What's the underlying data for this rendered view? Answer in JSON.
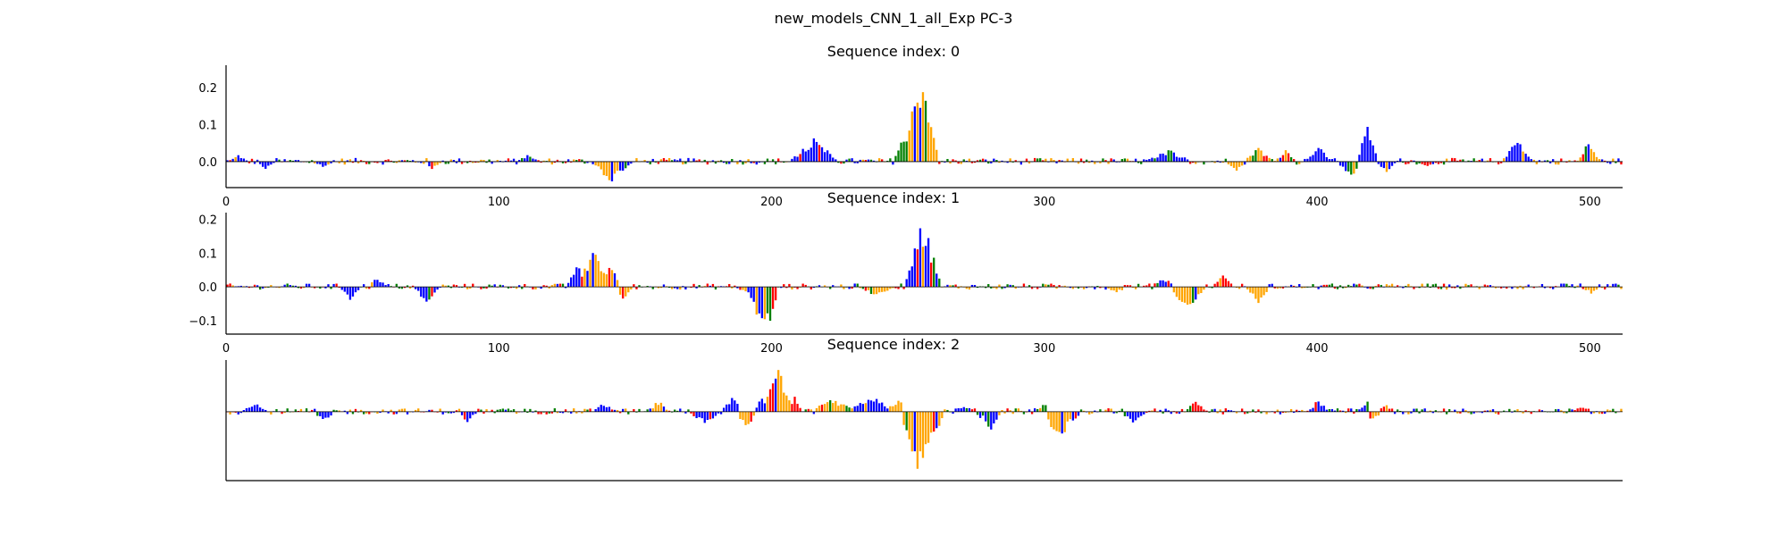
{
  "figure": {
    "suptitle": "new_models_CNN_1_all_Exp PC-3"
  },
  "colors": {
    "A": "#008000",
    "C": "#0000ff",
    "G": "#ffa500",
    "T": "#ff0000",
    "axis": "#000000"
  },
  "chart_data": [
    {
      "type": "area",
      "title": "Sequence index: 0",
      "sequence_length": 512,
      "xlim": [
        0,
        512
      ],
      "ylim": [
        -0.07,
        0.26
      ],
      "xticks": [
        0,
        100,
        200,
        300,
        400,
        500
      ],
      "yticks": [
        0.0,
        0.1,
        0.2
      ],
      "ytick_labels": [
        "0.0",
        "0.1",
        "0.2"
      ],
      "bases": [
        "A",
        "C",
        "G",
        "T"
      ],
      "features": [
        {
          "x": 4,
          "value": 0.02,
          "width": 3,
          "base": "C"
        },
        {
          "x": 14,
          "value": -0.02,
          "width": 3,
          "base": "C"
        },
        {
          "x": 35,
          "value": -0.015,
          "width": 4,
          "base": "C"
        },
        {
          "x": 75,
          "value": -0.02,
          "width": 3,
          "base": "G"
        },
        {
          "x": 110,
          "value": 0.02,
          "width": 3,
          "base": "C"
        },
        {
          "x": 140,
          "value": -0.065,
          "width": 5,
          "base": "G"
        },
        {
          "x": 145,
          "value": -0.035,
          "width": 3,
          "base": "C"
        },
        {
          "x": 215,
          "value": 0.07,
          "width": 8,
          "base": "C"
        },
        {
          "x": 248,
          "value": 0.09,
          "width": 3,
          "base": "A"
        },
        {
          "x": 254,
          "value": 0.25,
          "width": 6,
          "base": "G"
        },
        {
          "x": 258,
          "value": 0.09,
          "width": 2,
          "base": "T"
        },
        {
          "x": 259,
          "value": -0.03,
          "width": 2,
          "base": "T"
        },
        {
          "x": 345,
          "value": 0.035,
          "width": 8,
          "base": "C"
        },
        {
          "x": 370,
          "value": -0.03,
          "width": 3,
          "base": "G"
        },
        {
          "x": 378,
          "value": 0.04,
          "width": 5,
          "base": "G"
        },
        {
          "x": 388,
          "value": 0.035,
          "width": 3,
          "base": "T"
        },
        {
          "x": 400,
          "value": 0.05,
          "width": 4,
          "base": "C"
        },
        {
          "x": 412,
          "value": -0.055,
          "width": 4,
          "base": "C"
        },
        {
          "x": 418,
          "value": 0.1,
          "width": 3,
          "base": "C"
        },
        {
          "x": 425,
          "value": -0.03,
          "width": 3,
          "base": "C"
        },
        {
          "x": 440,
          "value": -0.015,
          "width": 3,
          "base": "T"
        },
        {
          "x": 473,
          "value": 0.06,
          "width": 5,
          "base": "C"
        },
        {
          "x": 499,
          "value": 0.06,
          "width": 3,
          "base": "G"
        }
      ]
    },
    {
      "type": "area",
      "title": "Sequence index: 1",
      "sequence_length": 512,
      "xlim": [
        0,
        512
      ],
      "ylim": [
        -0.14,
        0.22
      ],
      "xticks": [
        0,
        100,
        200,
        300,
        400,
        500
      ],
      "yticks": [
        -0.1,
        0.0,
        0.1,
        0.2
      ],
      "ytick_labels": [
        "−0.1",
        "0.0",
        "0.1",
        "0.2"
      ],
      "bases": [
        "A",
        "C",
        "G",
        "T"
      ],
      "features": [
        {
          "x": 45,
          "value": -0.04,
          "width": 3,
          "base": "C"
        },
        {
          "x": 55,
          "value": 0.03,
          "width": 3,
          "base": "C"
        },
        {
          "x": 73,
          "value": -0.05,
          "width": 4,
          "base": "C"
        },
        {
          "x": 134,
          "value": 0.14,
          "width": 4,
          "base": "G"
        },
        {
          "x": 128,
          "value": 0.08,
          "width": 3,
          "base": "C"
        },
        {
          "x": 140,
          "value": 0.07,
          "width": 4,
          "base": "G"
        },
        {
          "x": 145,
          "value": -0.04,
          "width": 3,
          "base": "G"
        },
        {
          "x": 190,
          "value": -0.02,
          "width": 3,
          "base": "G"
        },
        {
          "x": 196,
          "value": -0.13,
          "width": 5,
          "base": "C"
        },
        {
          "x": 197,
          "value": -0.11,
          "width": 2,
          "base": "A"
        },
        {
          "x": 199,
          "value": -0.13,
          "width": 2,
          "base": "T"
        },
        {
          "x": 238,
          "value": -0.03,
          "width": 6,
          "base": "G"
        },
        {
          "x": 255,
          "value": 0.21,
          "width": 6,
          "base": "C"
        },
        {
          "x": 254,
          "value": 0.17,
          "width": 2,
          "base": "T"
        },
        {
          "x": 252,
          "value": 0.11,
          "width": 2,
          "base": "T"
        },
        {
          "x": 326,
          "value": -0.02,
          "width": 3,
          "base": "G"
        },
        {
          "x": 343,
          "value": 0.03,
          "width": 4,
          "base": "C"
        },
        {
          "x": 352,
          "value": -0.07,
          "width": 6,
          "base": "G"
        },
        {
          "x": 365,
          "value": 0.04,
          "width": 3,
          "base": "T"
        },
        {
          "x": 378,
          "value": -0.05,
          "width": 4,
          "base": "G"
        },
        {
          "x": 500,
          "value": -0.02,
          "width": 4,
          "base": "G"
        }
      ]
    },
    {
      "type": "area",
      "title": "Sequence index: 2",
      "sequence_length": 512,
      "xlim": [
        0,
        512
      ],
      "ylim": [
        -0.2,
        0.15
      ],
      "xticks": [],
      "yticks": [],
      "ytick_labels": [],
      "bases": [
        "A",
        "C",
        "G",
        "T"
      ],
      "features": [
        {
          "x": 10,
          "value": 0.03,
          "width": 4,
          "base": "C"
        },
        {
          "x": 35,
          "value": -0.03,
          "width": 4,
          "base": "C"
        },
        {
          "x": 88,
          "value": -0.03,
          "width": 3,
          "base": "C"
        },
        {
          "x": 138,
          "value": 0.03,
          "width": 3,
          "base": "C"
        },
        {
          "x": 158,
          "value": 0.035,
          "width": 3,
          "base": "G"
        },
        {
          "x": 175,
          "value": -0.04,
          "width": 5,
          "base": "C"
        },
        {
          "x": 185,
          "value": 0.05,
          "width": 3,
          "base": "C"
        },
        {
          "x": 190,
          "value": -0.05,
          "width": 4,
          "base": "G"
        },
        {
          "x": 202,
          "value": 0.15,
          "width": 5,
          "base": "G"
        },
        {
          "x": 196,
          "value": 0.06,
          "width": 2,
          "base": "C"
        },
        {
          "x": 208,
          "value": 0.05,
          "width": 2,
          "base": "T"
        },
        {
          "x": 222,
          "value": 0.04,
          "width": 8,
          "base": "G"
        },
        {
          "x": 236,
          "value": 0.05,
          "width": 8,
          "base": "C"
        },
        {
          "x": 246,
          "value": 0.04,
          "width": 4,
          "base": "G"
        },
        {
          "x": 254,
          "value": -0.19,
          "width": 8,
          "base": "G"
        },
        {
          "x": 252,
          "value": -0.12,
          "width": 2,
          "base": "T"
        },
        {
          "x": 258,
          "value": -0.1,
          "width": 2,
          "base": "C"
        },
        {
          "x": 270,
          "value": 0.02,
          "width": 4,
          "base": "C"
        },
        {
          "x": 276,
          "value": -0.02,
          "width": 3,
          "base": "C"
        },
        {
          "x": 280,
          "value": -0.06,
          "width": 3,
          "base": "C"
        },
        {
          "x": 305,
          "value": -0.09,
          "width": 5,
          "base": "G"
        },
        {
          "x": 300,
          "value": 0.03,
          "width": 3,
          "base": "A"
        },
        {
          "x": 310,
          "value": -0.03,
          "width": 3,
          "base": "C"
        },
        {
          "x": 332,
          "value": -0.04,
          "width": 4,
          "base": "C"
        },
        {
          "x": 355,
          "value": 0.04,
          "width": 3,
          "base": "T"
        },
        {
          "x": 400,
          "value": 0.04,
          "width": 3,
          "base": "C"
        },
        {
          "x": 418,
          "value": 0.03,
          "width": 3,
          "base": "C"
        },
        {
          "x": 420,
          "value": -0.03,
          "width": 3,
          "base": "G"
        },
        {
          "x": 425,
          "value": 0.02,
          "width": 3,
          "base": "T"
        },
        {
          "x": 497,
          "value": 0.02,
          "width": 3,
          "base": "T"
        }
      ]
    }
  ]
}
